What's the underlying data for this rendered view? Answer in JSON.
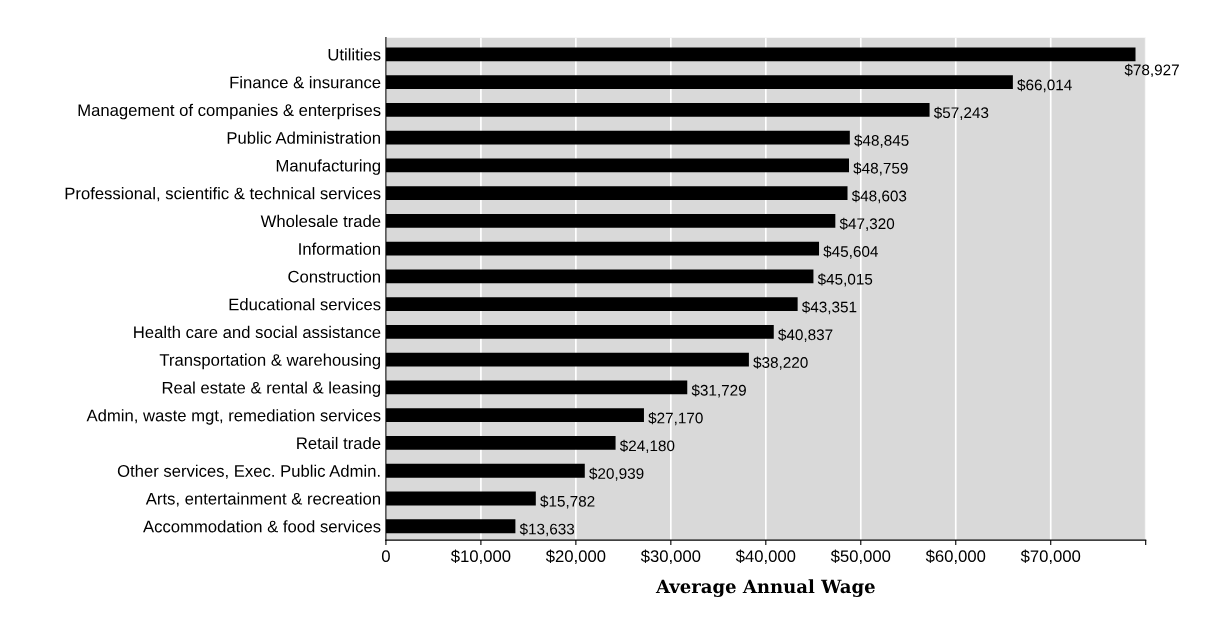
{
  "chart_data": {
    "type": "bar",
    "orientation": "horizontal",
    "xlabel": "Average Annual Wage",
    "categories": [
      "Utilities",
      "Finance & insurance",
      "Management of companies & enterprises",
      "Public Administration",
      "Manufacturing",
      "Professional, scientific & technical services",
      "Wholesale trade",
      "Information",
      "Construction",
      "Educational services",
      "Health care and social assistance",
      "Transportation & warehousing",
      "Real estate & rental & leasing",
      "Admin, waste mgt, remediation services",
      "Retail trade",
      "Other services, Exec. Public Admin.",
      "Arts, entertainment & recreation",
      "Accommodation & food services"
    ],
    "values": [
      78927,
      66014,
      57243,
      48845,
      48759,
      48603,
      47320,
      45604,
      45015,
      43351,
      40837,
      38220,
      31729,
      27170,
      24180,
      20939,
      15782,
      13633
    ],
    "value_labels": [
      "$78,927",
      "$66,014",
      "$57,243",
      "$48,845",
      "$48,759",
      "$48,603",
      "$47,320",
      "$45,604",
      "$45,015",
      "$43,351",
      "$40,837",
      "$38,220",
      "$31,729",
      "$27,170",
      "$24,180",
      "$20,939",
      "$15,782",
      "$13,633"
    ],
    "color": "#000000",
    "xlim": [
      0,
      80000
    ],
    "xticks": [
      {
        "value": 0,
        "label": "0"
      },
      {
        "value": 10000,
        "label": "$10,000"
      },
      {
        "value": 20000,
        "label": "$20,000"
      },
      {
        "value": 30000,
        "label": "$30,000"
      },
      {
        "value": 40000,
        "label": "$40,000"
      },
      {
        "value": 50000,
        "label": "$50,000"
      },
      {
        "value": 60000,
        "label": "$60,000"
      },
      {
        "value": 70000,
        "label": "$70,000"
      },
      {
        "value": 80000,
        "label": null
      }
    ],
    "grid": "x",
    "legend": false
  }
}
